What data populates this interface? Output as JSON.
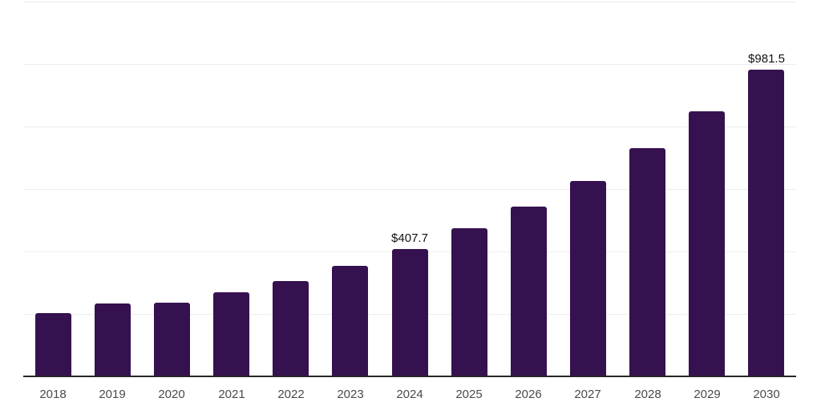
{
  "chart_data": {
    "type": "bar",
    "title": "",
    "xlabel": "",
    "ylabel": "",
    "categories": [
      "2018",
      "2019",
      "2020",
      "2021",
      "2022",
      "2023",
      "2024",
      "2025",
      "2026",
      "2027",
      "2028",
      "2029",
      "2030"
    ],
    "values": [
      202,
      234,
      237,
      269,
      306,
      354,
      407.7,
      474,
      544,
      626,
      731,
      849,
      981.5
    ],
    "value_labels": [
      "",
      "",
      "",
      "",
      "",
      "",
      "$407.7",
      "",
      "",
      "",
      "",
      "",
      "$981.5"
    ],
    "ylim": [
      0,
      1200
    ],
    "gridline_step": 200,
    "grid": true,
    "legend": false,
    "colors": {
      "bar": "#36114f",
      "gridline": "#ececec",
      "axis_line": "#262626",
      "tick_label": "#4a4a4a",
      "value_label": "#111111",
      "background": "#ffffff"
    }
  }
}
